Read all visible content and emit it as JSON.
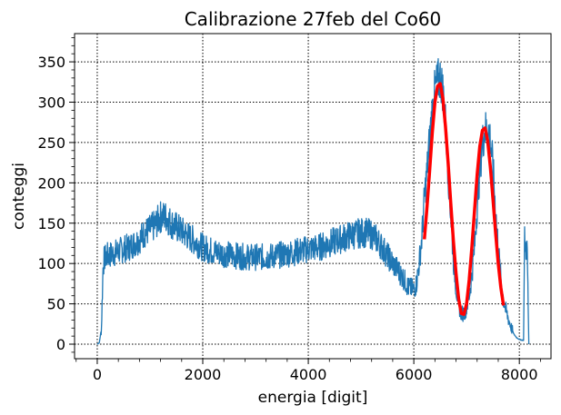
{
  "chart_data": {
    "type": "line",
    "title": "Calibrazione 27feb del Co60",
    "xlabel": "energia [digit]",
    "ylabel": "conteggi",
    "xlim": [
      -430,
      8600
    ],
    "ylim": [
      -18,
      385
    ],
    "xticks": [
      0,
      2000,
      4000,
      6000,
      8000
    ],
    "yticks": [
      0,
      50,
      100,
      150,
      200,
      250,
      300,
      350
    ],
    "grid": true,
    "grid_style": "dotted",
    "series": [
      {
        "kind": "spectrum",
        "color": "#1f77b4",
        "x": [
          0,
          40,
          80,
          110,
          130,
          160,
          200,
          300,
          400,
          500,
          600,
          700,
          800,
          900,
          1000,
          1100,
          1200,
          1300,
          1400,
          1500,
          1600,
          1700,
          1800,
          1900,
          2000,
          2200,
          2400,
          2600,
          2800,
          3000,
          3200,
          3400,
          3600,
          3800,
          4000,
          4200,
          4400,
          4600,
          4800,
          5000,
          5100,
          5200,
          5300,
          5400,
          5500,
          5600,
          5700,
          5800,
          5900,
          6000,
          6050,
          6100,
          6150,
          6200,
          6250,
          6300,
          6350,
          6400,
          6450,
          6500,
          6550,
          6600,
          6650,
          6700,
          6750,
          6800,
          6850,
          6900,
          6950,
          7000,
          7050,
          7100,
          7150,
          7200,
          7250,
          7300,
          7350,
          7400,
          7450,
          7500,
          7550,
          7600,
          7650,
          7700,
          7750,
          7800,
          7850,
          7900,
          7950,
          8000,
          8050,
          8080,
          8100,
          8120,
          8150,
          8180
        ],
        "values": [
          0,
          2,
          20,
          95,
          105,
          108,
          110,
          112,
          115,
          118,
          120,
          125,
          130,
          138,
          142,
          148,
          158,
          158,
          150,
          145,
          140,
          135,
          130,
          125,
          120,
          115,
          112,
          110,
          108,
          108,
          108,
          110,
          112,
          115,
          118,
          120,
          125,
          130,
          135,
          138,
          138,
          136,
          130,
          120,
          110,
          100,
          92,
          82,
          70,
          68,
          75,
          100,
          130,
          180,
          215,
          255,
          290,
          315,
          325,
          330,
          315,
          275,
          215,
          160,
          105,
          70,
          48,
          38,
          38,
          45,
          60,
          85,
          120,
          170,
          215,
          250,
          265,
          268,
          255,
          220,
          165,
          120,
          80,
          55,
          40,
          30,
          20,
          12,
          8,
          6,
          5,
          5,
          130,
          120,
          115,
          0
        ]
      },
      {
        "kind": "fit",
        "color": "#ff0000",
        "x": [
          6200,
          6250,
          6300,
          6350,
          6400,
          6450,
          6500,
          6550,
          6600,
          6650,
          6700,
          6750,
          6800,
          6850,
          6900,
          6950,
          7000,
          7050,
          7100,
          7150,
          7200,
          7250,
          7300,
          7350,
          7400,
          7450,
          7500,
          7550,
          7600,
          7650,
          7700
        ],
        "values": [
          130,
          170,
          215,
          262,
          300,
          320,
          323,
          305,
          270,
          225,
          175,
          128,
          88,
          56,
          38,
          37,
          50,
          80,
          120,
          165,
          210,
          245,
          265,
          268,
          252,
          220,
          180,
          138,
          100,
          70,
          48
        ]
      }
    ]
  }
}
